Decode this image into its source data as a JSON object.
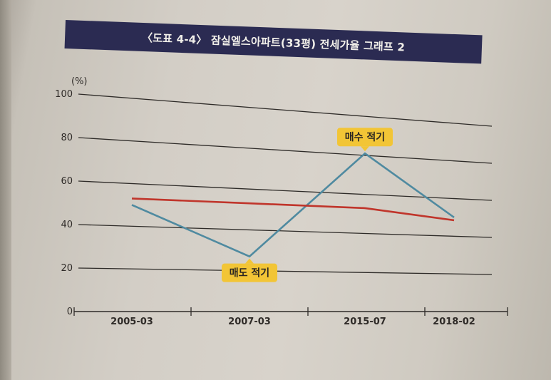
{
  "chart_data": {
    "type": "line",
    "title": "〈도표 4-4〉 잠실엘스아파트(33평) 전세가율 그래프 2",
    "ylabel": "(%)",
    "ylim": [
      0,
      100
    ],
    "yticks": [
      "100",
      "80",
      "60",
      "40",
      "20",
      "0"
    ],
    "categories": [
      "2005-03",
      "2007-03",
      "2015-07",
      "2018-02"
    ],
    "series": [
      {
        "values": [
          50,
          27,
          81,
          50
        ],
        "color": "#4f8aa0"
      },
      {
        "values": [
          53,
          53,
          53,
          48.5
        ],
        "color": "#c0352b"
      }
    ],
    "annotations": [
      {
        "text": "매수 적기",
        "category": "2015-07",
        "value": 81,
        "position": "above"
      },
      {
        "text": "매도 적기",
        "category": "2007-03",
        "value": 27,
        "position": "below"
      }
    ],
    "grid": true
  }
}
